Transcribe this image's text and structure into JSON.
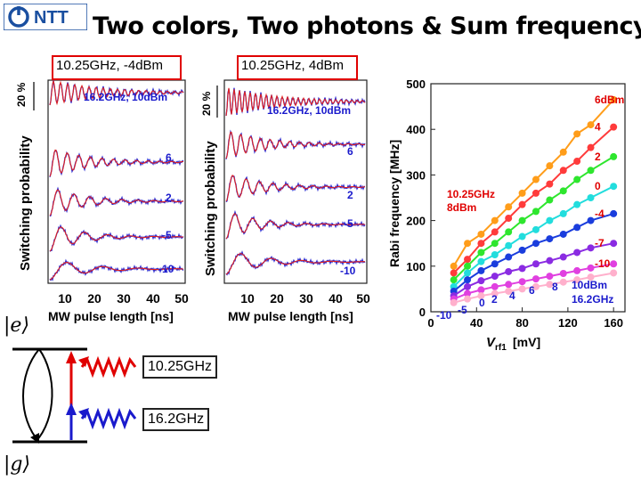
{
  "logo": {
    "text": "NTT",
    "icon": "ntt-logo-icon"
  },
  "title": "Two colors, Two photons & Sum frequency",
  "conditions": {
    "left": "10.25GHz, -4dBm",
    "right": "10.25GHz, 4dBm"
  },
  "left_panel": {
    "ylabel": "Switching probability",
    "scale": "20 %",
    "xlabel": "MW pulse length [ns]",
    "xticks": [
      "10",
      "20",
      "30",
      "40",
      "50"
    ],
    "traces": [
      {
        "label": "16.2GHz, 10dBm"
      },
      {
        "label": "6"
      },
      {
        "label": "2"
      },
      {
        "label": "-5"
      },
      {
        "label": "-10"
      }
    ]
  },
  "right_panel": {
    "ylabel": "Switching probability",
    "scale": "20 %",
    "xlabel": "MW pulse length [ns]",
    "xticks": [
      "10",
      "20",
      "30",
      "40",
      "50"
    ],
    "traces": [
      {
        "label": "16.2GHz, 10dBm"
      },
      {
        "label": "6"
      },
      {
        "label": "2"
      },
      {
        "label": "-5"
      },
      {
        "label": "-10"
      }
    ]
  },
  "chart_data": {
    "type": "line",
    "title": "",
    "xlabel_main": "V",
    "xlabel_sub": "rf1",
    "xlabel_unit": "[mV]",
    "ylabel": "Rabi frequency [MHz]",
    "xlim": [
      0,
      170
    ],
    "ylim": [
      0,
      500
    ],
    "xticks": [
      0,
      40,
      80,
      120,
      160
    ],
    "yticks": [
      0,
      100,
      200,
      300,
      400,
      500
    ],
    "annotation": "10.25GHz 8dBm",
    "series": [
      {
        "name": "6dBm",
        "color": "#ff9d1a",
        "x": [
          20,
          32,
          44,
          56,
          68,
          80,
          92,
          104,
          116,
          128,
          140,
          160
        ],
        "y": [
          100,
          150,
          170,
          200,
          230,
          260,
          290,
          320,
          350,
          390,
          410,
          465
        ]
      },
      {
        "name": "4",
        "color": "#ff3b3b",
        "x": [
          20,
          32,
          44,
          56,
          68,
          80,
          92,
          104,
          116,
          128,
          140,
          160
        ],
        "y": [
          85,
          115,
          150,
          175,
          205,
          235,
          260,
          280,
          310,
          330,
          360,
          405
        ]
      },
      {
        "name": "2",
        "color": "#2ee62e",
        "x": [
          20,
          32,
          44,
          56,
          68,
          80,
          92,
          104,
          116,
          128,
          140,
          160
        ],
        "y": [
          70,
          100,
          130,
          150,
          175,
          200,
          220,
          245,
          265,
          290,
          310,
          340
        ]
      },
      {
        "name": "0",
        "color": "#22dddd",
        "x": [
          20,
          32,
          44,
          56,
          68,
          80,
          92,
          104,
          116,
          128,
          140,
          160
        ],
        "y": [
          55,
          85,
          110,
          125,
          145,
          165,
          180,
          200,
          215,
          235,
          250,
          275
        ]
      },
      {
        "name": "-4",
        "color": "#1a3ddd",
        "x": [
          20,
          32,
          44,
          56,
          68,
          80,
          92,
          104,
          116,
          128,
          140,
          160
        ],
        "y": [
          45,
          70,
          90,
          105,
          120,
          135,
          150,
          160,
          170,
          185,
          200,
          215
        ]
      },
      {
        "name": "-7",
        "color": "#8a2be2",
        "x": [
          20,
          32,
          44,
          56,
          68,
          80,
          92,
          104,
          116,
          128,
          140,
          160
        ],
        "y": [
          35,
          55,
          68,
          78,
          88,
          95,
          105,
          112,
          120,
          130,
          140,
          150
        ]
      },
      {
        "name": "-10",
        "color": "#e040e0",
        "x": [
          20,
          32,
          44,
          56,
          68,
          80,
          92,
          104,
          116,
          128,
          140,
          160
        ],
        "y": [
          28,
          40,
          48,
          55,
          60,
          66,
          72,
          78,
          84,
          90,
          96,
          105
        ]
      },
      {
        "name": "16.2GHz",
        "color": "#ffb0cc",
        "x": [
          20,
          32,
          44,
          56,
          68,
          80,
          92,
          104,
          116,
          128,
          140,
          160
        ],
        "y": [
          20,
          28,
          35,
          40,
          45,
          50,
          55,
          60,
          65,
          70,
          76,
          85
        ]
      }
    ],
    "bottom_labels": [
      "-10",
      "-5",
      "0",
      "2",
      "4",
      "6",
      "8",
      "10dBm",
      "16.2GHz"
    ]
  },
  "diagram": {
    "excited_state": "e",
    "ground_state": "g",
    "freq1": "10.25GHz",
    "freq2": "16.2GHz"
  }
}
